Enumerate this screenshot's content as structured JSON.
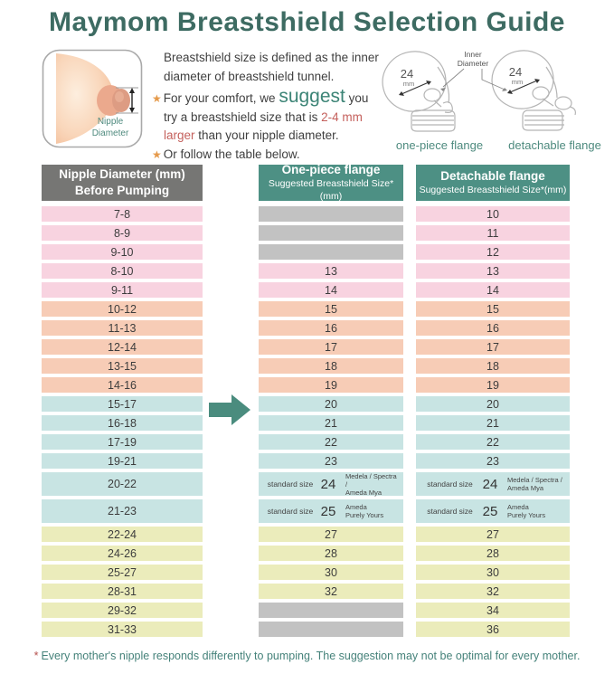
{
  "title": "Maymom Breastshield Selection Guide",
  "icons": {
    "star_bullet": "★"
  },
  "intro": {
    "sentence": "Breastshield size is defined as the inner diameter of breastshield tunnel.",
    "bullet1_pre": "For your comfort, we ",
    "bullet1_suggest": "suggest",
    "bullet1_mid": " you try a breastshield size that is ",
    "bullet1_highlight": "2-4 mm larger",
    "bullet1_post": " than your nipple diameter.",
    "bullet2": "Or follow the table below.",
    "diagram_label": "Nipple Diameter"
  },
  "flanges": {
    "inner_label_line1": "Inner",
    "inner_label_line2": "Diameter",
    "size": "24",
    "unit": "mm",
    "left_caption": "one-piece flange",
    "right_caption": "detachable flange"
  },
  "table": {
    "col1_header": {
      "line1": "Nipple Diameter (mm)",
      "line2": "Before Pumping"
    },
    "col2_header": {
      "line1": "One-piece flange",
      "line2": "Suggested Breastshield Size*(mm)"
    },
    "col3_header": {
      "line1": "Detachable flange",
      "line2": "Suggested Breastshield Size*(mm)"
    },
    "rows": [
      {
        "range": "7-8",
        "group": "pink",
        "one_piece": {
          "type": "gray"
        },
        "detachable": {
          "type": "value",
          "value": "10"
        }
      },
      {
        "range": "8-9",
        "group": "pink",
        "one_piece": {
          "type": "gray"
        },
        "detachable": {
          "type": "value",
          "value": "11"
        }
      },
      {
        "range": "9-10",
        "group": "pink",
        "one_piece": {
          "type": "gray"
        },
        "detachable": {
          "type": "value",
          "value": "12"
        }
      },
      {
        "range": "8-10",
        "group": "pink",
        "one_piece": {
          "type": "value",
          "value": "13"
        },
        "detachable": {
          "type": "value",
          "value": "13"
        }
      },
      {
        "range": "9-11",
        "group": "pink",
        "one_piece": {
          "type": "value",
          "value": "14"
        },
        "detachable": {
          "type": "value",
          "value": "14"
        }
      },
      {
        "range": "10-12",
        "group": "peach",
        "one_piece": {
          "type": "value",
          "value": "15"
        },
        "detachable": {
          "type": "value",
          "value": "15"
        }
      },
      {
        "range": "11-13",
        "group": "peach",
        "one_piece": {
          "type": "value",
          "value": "16"
        },
        "detachable": {
          "type": "value",
          "value": "16"
        }
      },
      {
        "range": "12-14",
        "group": "peach",
        "one_piece": {
          "type": "value",
          "value": "17"
        },
        "detachable": {
          "type": "value",
          "value": "17"
        }
      },
      {
        "range": "13-15",
        "group": "peach",
        "one_piece": {
          "type": "value",
          "value": "18"
        },
        "detachable": {
          "type": "value",
          "value": "18"
        }
      },
      {
        "range": "14-16",
        "group": "peach",
        "one_piece": {
          "type": "value",
          "value": "19"
        },
        "detachable": {
          "type": "value",
          "value": "19"
        }
      },
      {
        "range": "15-17",
        "group": "blue",
        "one_piece": {
          "type": "value",
          "value": "20"
        },
        "detachable": {
          "type": "value",
          "value": "20"
        }
      },
      {
        "range": "16-18",
        "group": "blue",
        "one_piece": {
          "type": "value",
          "value": "21"
        },
        "detachable": {
          "type": "value",
          "value": "21"
        }
      },
      {
        "range": "17-19",
        "group": "blue",
        "one_piece": {
          "type": "value",
          "value": "22"
        },
        "detachable": {
          "type": "value",
          "value": "22"
        }
      },
      {
        "range": "19-21",
        "group": "blue",
        "one_piece": {
          "type": "value",
          "value": "23"
        },
        "detachable": {
          "type": "value",
          "value": "23"
        }
      },
      {
        "range": "20-22",
        "group": "blue",
        "one_piece": {
          "type": "standard",
          "label": "standard size",
          "size": "24",
          "brand_line1": "Medela / Spectra /",
          "brand_line2": "Ameda Mya"
        },
        "detachable": {
          "type": "standard",
          "label": "standard size",
          "size": "24",
          "brand_line1": "Medela / Spectra /",
          "brand_line2": "Ameda Mya"
        }
      },
      {
        "range": "21-23",
        "group": "blue",
        "one_piece": {
          "type": "standard",
          "label": "standard size",
          "size": "25",
          "brand_line1": "Ameda",
          "brand_line2": "Purely Yours"
        },
        "detachable": {
          "type": "standard",
          "label": "standard size",
          "size": "25",
          "brand_line1": "Ameda",
          "brand_line2": "Purely Yours"
        }
      },
      {
        "range": "22-24",
        "group": "yellow",
        "one_piece": {
          "type": "value",
          "value": "27"
        },
        "detachable": {
          "type": "value",
          "value": "27"
        }
      },
      {
        "range": "24-26",
        "group": "yellow",
        "one_piece": {
          "type": "value",
          "value": "28"
        },
        "detachable": {
          "type": "value",
          "value": "28"
        }
      },
      {
        "range": "25-27",
        "group": "yellow",
        "one_piece": {
          "type": "value",
          "value": "30"
        },
        "detachable": {
          "type": "value",
          "value": "30"
        }
      },
      {
        "range": "28-31",
        "group": "yellow",
        "one_piece": {
          "type": "value",
          "value": "32"
        },
        "detachable": {
          "type": "value",
          "value": "32"
        }
      },
      {
        "range": "29-32",
        "group": "yellow",
        "one_piece": {
          "type": "gray"
        },
        "detachable": {
          "type": "value",
          "value": "34"
        }
      },
      {
        "range": "31-33",
        "group": "yellow",
        "one_piece": {
          "type": "gray"
        },
        "detachable": {
          "type": "value",
          "value": "36"
        }
      }
    ]
  },
  "footnote": {
    "star": "*",
    "text": "Every mother's nipple responds differently to pumping. The suggestion may not be optimal for every mother."
  },
  "colors": {
    "title_teal": "#3d6b62",
    "header_gray": "#767674",
    "header_teal": "#4d9084",
    "row_pink": "#f8d3e0",
    "row_peach": "#f7ccb6",
    "row_blue": "#c8e4e3",
    "row_yellow": "#ebecbb",
    "empty_cell_gray": "#c2c2c2",
    "accent_red": "#c4605c",
    "suggest_teal": "#3c8476",
    "star_orange": "#e59a4b",
    "arrow_teal": "#4a8c7e",
    "footnote_teal": "#45827a"
  }
}
